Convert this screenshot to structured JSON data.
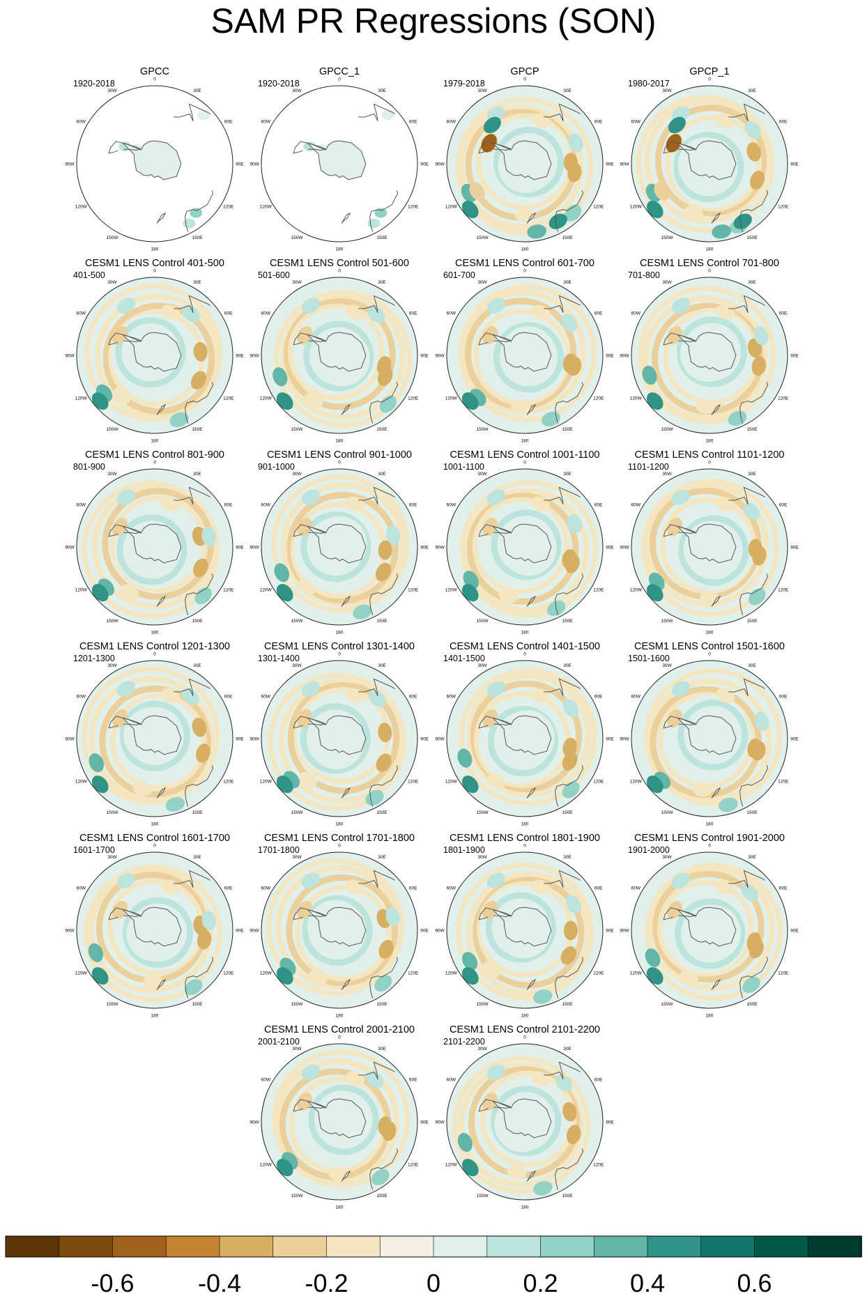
{
  "title": "SAM PR Regressions (SON)",
  "lon_labels": [
    "0",
    "30E",
    "60E",
    "90E",
    "120E",
    "150E",
    "180",
    "150W",
    "120W",
    "90W",
    "60W",
    "30W"
  ],
  "panels": [
    {
      "title": "GPCC",
      "period": "1920-2018",
      "variant": "land-only"
    },
    {
      "title": "GPCC_1",
      "period": "1920-2018",
      "variant": "land-only"
    },
    {
      "title": "GPCP",
      "period": "1979-2018",
      "variant": "observed"
    },
    {
      "title": "GPCP_1",
      "period": "1980-2017",
      "variant": "observed"
    },
    {
      "title": "CESM1 LENS Control 401-500",
      "period": "401-500",
      "variant": "model"
    },
    {
      "title": "CESM1 LENS Control 501-600",
      "period": "501-600",
      "variant": "model"
    },
    {
      "title": "CESM1 LENS Control 601-700",
      "period": "601-700",
      "variant": "model"
    },
    {
      "title": "CESM1 LENS Control 701-800",
      "period": "701-800",
      "variant": "model"
    },
    {
      "title": "CESM1 LENS Control 801-900",
      "period": "801-900",
      "variant": "model"
    },
    {
      "title": "CESM1 LENS Control 901-1000",
      "period": "901-1000",
      "variant": "model"
    },
    {
      "title": "CESM1 LENS Control 1001-1100",
      "period": "1001-1100",
      "variant": "model"
    },
    {
      "title": "CESM1 LENS Control 1101-1200",
      "period": "1101-1200",
      "variant": "model"
    },
    {
      "title": "CESM1 LENS Control 1201-1300",
      "period": "1201-1300",
      "variant": "model"
    },
    {
      "title": "CESM1 LENS Control 1301-1400",
      "period": "1301-1400",
      "variant": "model"
    },
    {
      "title": "CESM1 LENS Control 1401-1500",
      "period": "1401-1500",
      "variant": "model"
    },
    {
      "title": "CESM1 LENS Control 1501-1600",
      "period": "1501-1600",
      "variant": "model"
    },
    {
      "title": "CESM1 LENS Control 1601-1700",
      "period": "1601-1700",
      "variant": "model"
    },
    {
      "title": "CESM1 LENS Control 1701-1800",
      "period": "1701-1800",
      "variant": "model"
    },
    {
      "title": "CESM1 LENS Control 1801-1900",
      "period": "1801-1900",
      "variant": "model"
    },
    {
      "title": "CESM1 LENS Control 1901-2000",
      "period": "1901-2000",
      "variant": "model"
    },
    {
      "title": "CESM1 LENS Control 2001-2100",
      "period": "2001-2100",
      "variant": "model"
    },
    {
      "title": "CESM1 LENS Control 2101-2200",
      "period": "2101-2200",
      "variant": "model"
    }
  ],
  "chart_data": {
    "type": "heatmap",
    "title": "SAM PR Regressions (SON)",
    "projection": "South polar stereographic",
    "colorbar": {
      "levels": [
        -0.7,
        -0.6,
        -0.5,
        -0.4,
        -0.3,
        -0.2,
        -0.1,
        0,
        0.1,
        0.2,
        0.3,
        0.4,
        0.5,
        0.6,
        0.7
      ],
      "colors": [
        "#5a3608",
        "#7c4a0f",
        "#a0611b",
        "#c4842f",
        "#d8ae63",
        "#ebd09b",
        "#f5e6c2",
        "#f4efe3",
        "#e2f0ec",
        "#bde4dc",
        "#92d2c6",
        "#62b6a8",
        "#2f9385",
        "#107466",
        "#005848",
        "#003b30"
      ],
      "tick_values": [
        -0.6,
        -0.4,
        -0.2,
        0,
        0.2,
        0.4,
        0.6
      ],
      "tick_labels": [
        "-0.6",
        "-0.4",
        "-0.2",
        "0",
        "0.2",
        "0.4",
        "0.6"
      ]
    }
  }
}
